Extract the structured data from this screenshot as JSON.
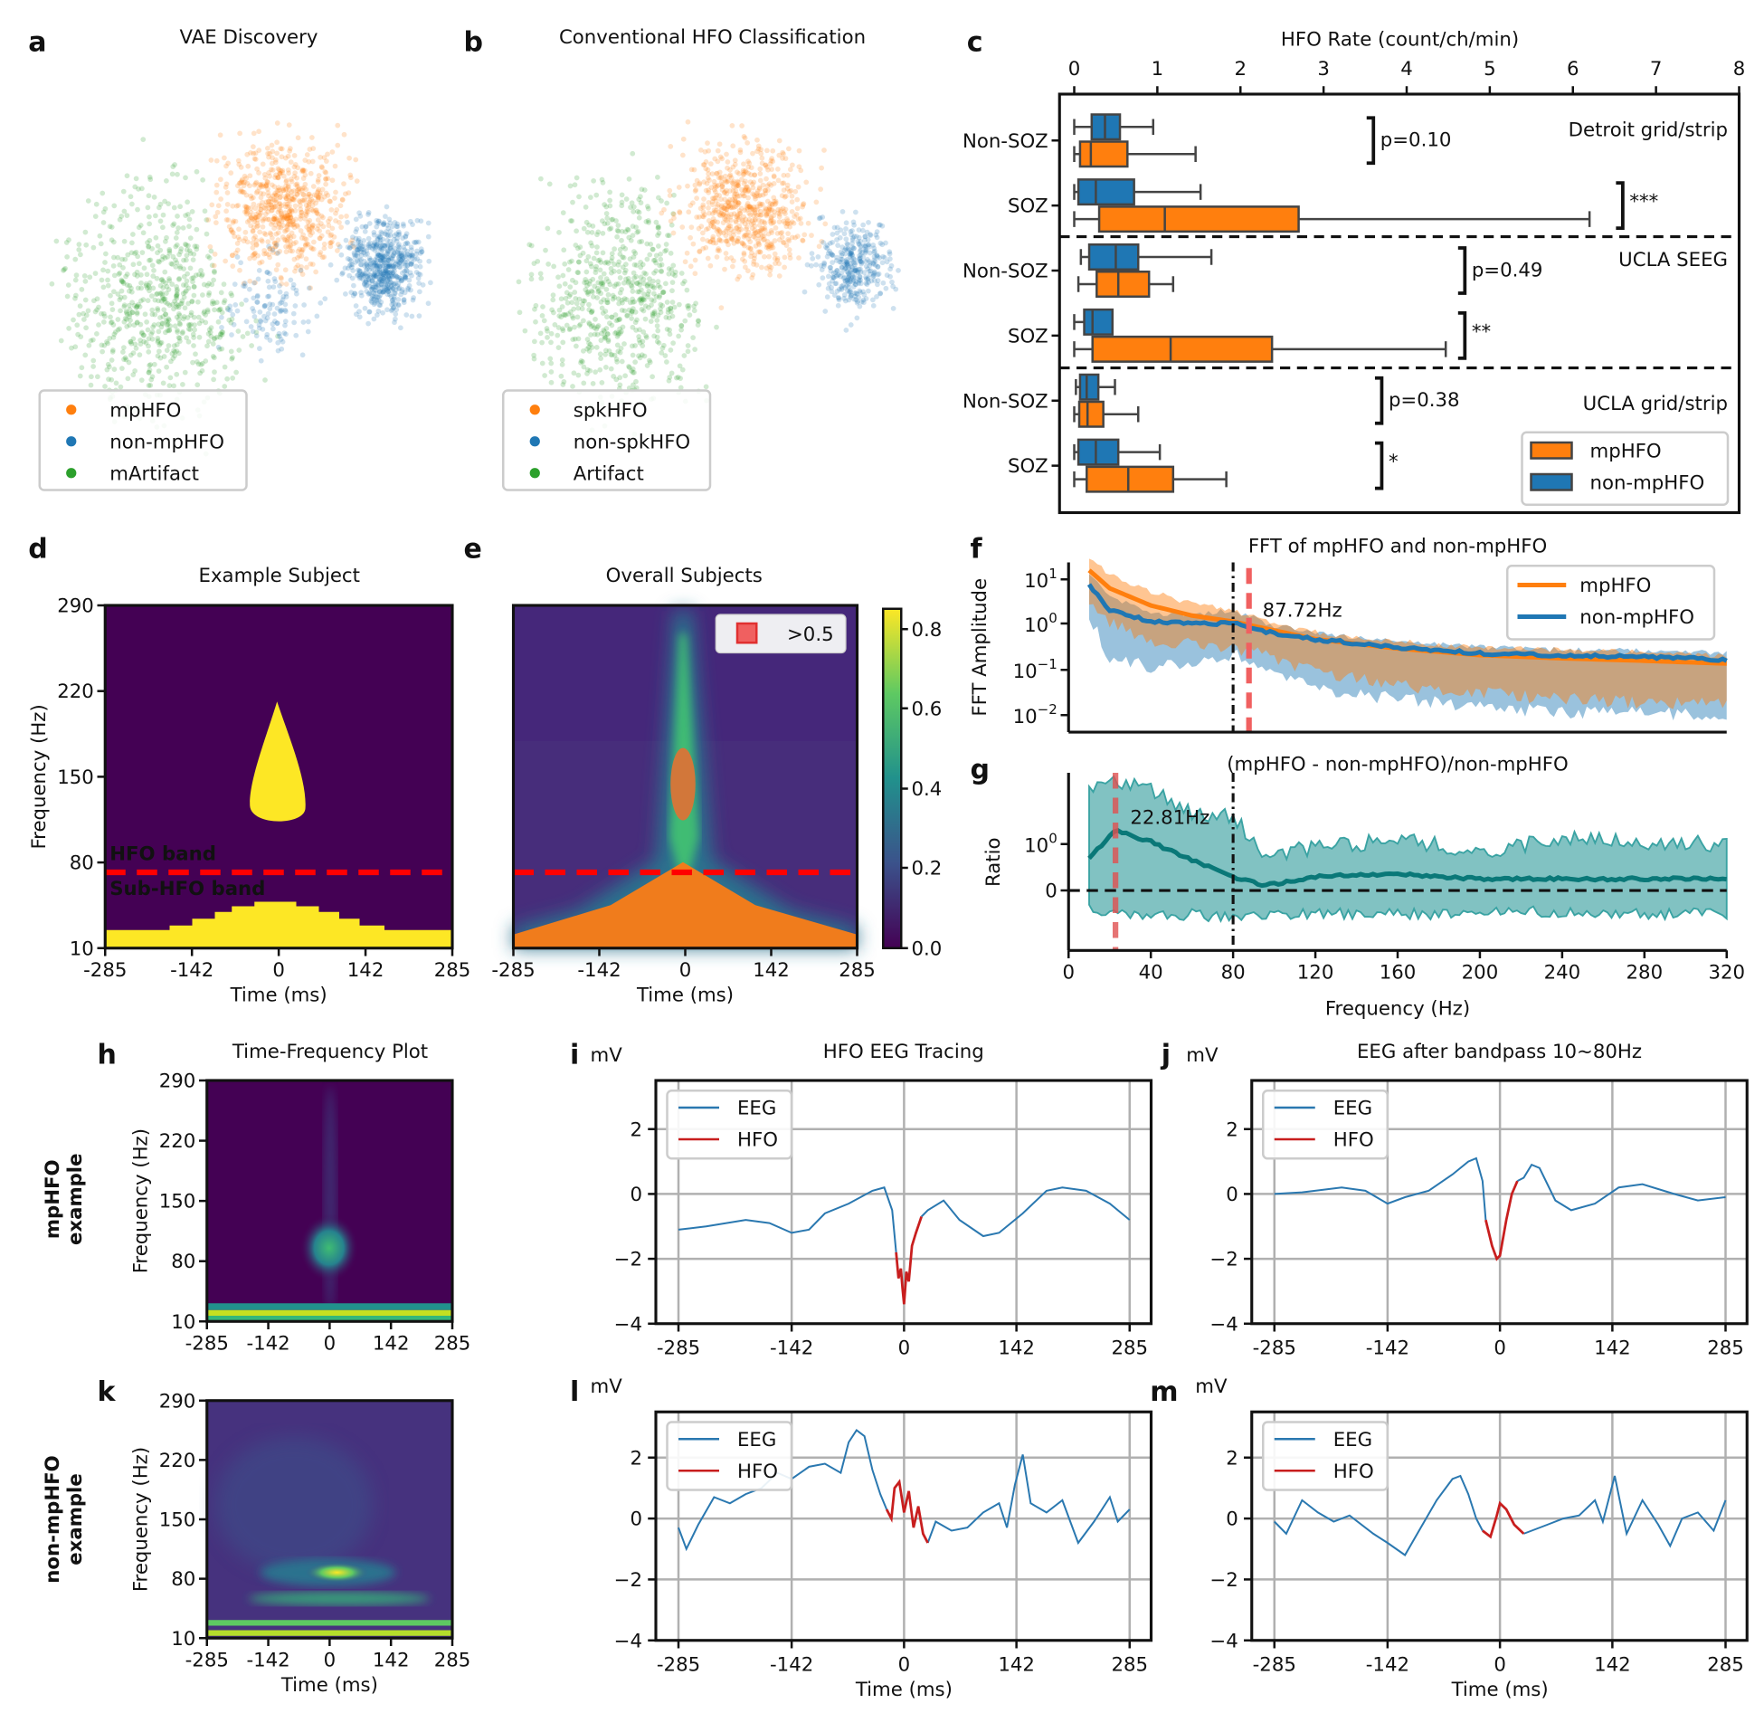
{
  "colors": {
    "orange": "#ff7f0e",
    "blue": "#1f77b4",
    "green": "#2ca02c",
    "teal": "#138a8a",
    "red": "#d62728",
    "band_red": "#ff0000"
  },
  "panels": {
    "a": {
      "label": "a",
      "title": "VAE Discovery",
      "legend": [
        "mpHFO",
        "non-mpHFO",
        "mArtifact"
      ]
    },
    "b": {
      "label": "b",
      "title": "Conventional HFO Classification",
      "legend": [
        "spkHFO",
        "non-spkHFO",
        "Artifact"
      ]
    },
    "c": {
      "label": "c"
    },
    "d": {
      "label": "d",
      "title": "Example Subject",
      "ylabel": "Frequency (Hz)",
      "xlabel": "Time (ms)",
      "hfo_band": "HFO band",
      "sub_hfo_band": "Sub-HFO band"
    },
    "e": {
      "label": "e",
      "title": "Overall Subjects",
      "xlabel": "Time (ms)",
      "legend": ">0.5",
      "colorbar_ticks": [
        "0.8",
        "0.6",
        "0.4",
        "0.2",
        "0.0"
      ]
    },
    "f": {
      "label": "f"
    },
    "g": {
      "label": "g"
    },
    "h": {
      "label": "h",
      "title": "Time-Frequency Plot",
      "ylabel": "Frequency (Hz)",
      "row_label_1": "mpHFO",
      "row_label_2": "example"
    },
    "i": {
      "label": "i",
      "unit": "mV",
      "title": "HFO EEG Tracing"
    },
    "j": {
      "label": "j",
      "unit": "mV",
      "title": "EEG after bandpass 10~80Hz"
    },
    "k": {
      "label": "k",
      "ylabel": "Frequency (Hz)",
      "xlabel": "Time (ms)",
      "row_label_1": "non-mpHFO",
      "row_label_2": "example"
    },
    "l": {
      "label": "l",
      "unit": "mV",
      "xlabel": "Time (ms)"
    },
    "m": {
      "label": "m",
      "unit": "mV",
      "xlabel": "Time (ms)"
    }
  },
  "tf_axes": {
    "yticks": [
      "290",
      "220",
      "150",
      "80",
      "10"
    ],
    "xticks": [
      "-285",
      "-142",
      "0",
      "142",
      "285"
    ]
  },
  "eeg_axes": {
    "yticks": [
      "2",
      "0",
      "−2",
      "−4"
    ],
    "xticks": [
      "-285",
      "-142",
      "0",
      "142",
      "285"
    ],
    "legend": [
      "EEG",
      "HFO"
    ]
  },
  "chart_data": [
    {
      "panel": "c",
      "type": "box",
      "title": "HFO Rate (count/ch/min)",
      "xlim": [
        0,
        8
      ],
      "xticks": [
        "0",
        "1",
        "2",
        "3",
        "4",
        "5",
        "6",
        "7",
        "8"
      ],
      "legend": [
        "mpHFO",
        "non-mpHFO"
      ],
      "legend_placement": "lower-right",
      "groups": [
        {
          "dataset": "Detroit grid/strip",
          "rows": [
            {
              "label": "Non-SOZ",
              "non_mpHFO": [
                0,
                0.21,
                0.37,
                0.55,
                0.95
              ],
              "mpHFO": [
                0,
                0.07,
                0.2,
                0.64,
                1.46
              ],
              "annotation": "p=0.10"
            },
            {
              "label": "SOZ",
              "non_mpHFO": [
                0,
                0.05,
                0.26,
                0.72,
                1.52
              ],
              "mpHFO": [
                0,
                0.3,
                1.09,
                2.7,
                6.2
              ],
              "annotation": "***"
            }
          ]
        },
        {
          "dataset": "UCLA SEEG",
          "rows": [
            {
              "label": "Non-SOZ",
              "non_mpHFO": [
                0.08,
                0.18,
                0.5,
                0.77,
                1.65
              ],
              "mpHFO": [
                0.05,
                0.27,
                0.53,
                0.9,
                1.19
              ],
              "annotation": "p=0.49"
            },
            {
              "label": "SOZ",
              "non_mpHFO": [
                0,
                0.12,
                0.22,
                0.46,
                0.46
              ],
              "mpHFO": [
                0,
                0.22,
                1.16,
                2.38,
                4.47
              ],
              "annotation": "**"
            }
          ]
        },
        {
          "dataset": "UCLA grid/strip",
          "rows": [
            {
              "label": "Non-SOZ",
              "non_mpHFO": [
                0.02,
                0.07,
                0.15,
                0.29,
                0.49
              ],
              "mpHFO": [
                0,
                0.06,
                0.16,
                0.35,
                0.77
              ],
              "annotation": "p=0.38"
            },
            {
              "label": "SOZ",
              "non_mpHFO": [
                0,
                0.05,
                0.26,
                0.53,
                1.03
              ],
              "mpHFO": [
                0,
                0.15,
                0.65,
                1.19,
                1.83
              ],
              "annotation": "*"
            }
          ]
        }
      ]
    },
    {
      "panel": "f",
      "type": "line",
      "title": "FFT of mpHFO and non-mpHFO",
      "ylabel": "FFT Amplitude",
      "yscale": "log",
      "yticks": [
        {
          "base": "10",
          "exp": "1"
        },
        {
          "base": "10",
          "exp": "0"
        },
        {
          "base": "10",
          "exp": "−1"
        },
        {
          "base": "10",
          "exp": "−2"
        }
      ],
      "xlim": [
        0,
        320
      ],
      "vline_black": 80,
      "vline_red": 87.72,
      "vline_red_label": "87.72Hz",
      "legend_placement": "upper-right",
      "x": [
        10,
        20,
        40,
        60,
        80,
        100,
        120,
        160,
        200,
        240,
        280,
        320
      ],
      "series": [
        {
          "name": "mpHFO",
          "mean": [
            15,
            6,
            2.5,
            1.5,
            1.1,
            0.7,
            0.45,
            0.28,
            0.2,
            0.17,
            0.15,
            0.13
          ],
          "lower": [
            5,
            1.5,
            0.6,
            0.5,
            0.4,
            0.25,
            0.12,
            0.06,
            0.04,
            0.03,
            0.025,
            0.025
          ],
          "upper": [
            30,
            12,
            5,
            2.8,
            1.9,
            1.0,
            0.65,
            0.4,
            0.3,
            0.26,
            0.23,
            0.2
          ]
        },
        {
          "name": "non-mpHFO",
          "mean": [
            7,
            2,
            1.1,
            1.0,
            1.0,
            0.6,
            0.45,
            0.3,
            0.22,
            0.2,
            0.18,
            0.16
          ],
          "lower": [
            2,
            0.25,
            0.15,
            0.2,
            0.3,
            0.1,
            0.05,
            0.03,
            0.02,
            0.015,
            0.015,
            0.012
          ],
          "upper": [
            12,
            4,
            1.8,
            1.5,
            2.0,
            0.9,
            0.6,
            0.4,
            0.3,
            0.26,
            0.25,
            0.23
          ]
        }
      ]
    },
    {
      "panel": "g",
      "type": "line",
      "title": "(mpHFO - non-mpHFO)/non-mpHFO",
      "ylabel": "Ratio",
      "xlabel": "Frequency (Hz)",
      "yticks": [
        {
          "base": "10",
          "exp": "0"
        },
        {
          "base": "0",
          "exp": ""
        }
      ],
      "xticks": [
        "0",
        "40",
        "80",
        "120",
        "160",
        "200",
        "240",
        "280",
        "320"
      ],
      "xlim": [
        0,
        320
      ],
      "hline": 0,
      "vline_black": 80,
      "vline_red": 22.81,
      "vline_red_label": "22.81Hz",
      "x": [
        10,
        22.81,
        40,
        60,
        80,
        95,
        120,
        160,
        200,
        240,
        280,
        320
      ],
      "mean": [
        0.7,
        1.3,
        1.05,
        0.65,
        0.3,
        0.1,
        0.3,
        0.35,
        0.25,
        0.25,
        0.25,
        0.25
      ],
      "lower": [
        -0.4,
        -0.5,
        -0.6,
        -0.5,
        -0.6,
        -0.5,
        -0.5,
        -0.5,
        -0.5,
        -0.45,
        -0.5,
        -0.5
      ],
      "upper": [
        2.1,
        2.3,
        2.2,
        1.7,
        1.6,
        0.8,
        0.9,
        1.1,
        0.85,
        1.1,
        1.05,
        1.0
      ]
    },
    {
      "panel": "i",
      "type": "line",
      "ylim": [
        -4,
        3.5
      ],
      "xlim": [
        -285,
        285
      ],
      "eeg": [
        [
          -285,
          -1.1
        ],
        [
          -250,
          -1.0
        ],
        [
          -200,
          -0.8
        ],
        [
          -170,
          -0.9
        ],
        [
          -142,
          -1.2
        ],
        [
          -120,
          -1.1
        ],
        [
          -100,
          -0.6
        ],
        [
          -70,
          -0.3
        ],
        [
          -40,
          0.1
        ],
        [
          -25,
          0.2
        ],
        [
          -15,
          -0.5
        ],
        [
          -10,
          -1.8
        ]
      ],
      "hfo": [
        [
          -10,
          -1.8
        ],
        [
          -7,
          -2.6
        ],
        [
          -4,
          -2.3
        ],
        [
          -2,
          -2.9
        ],
        [
          0,
          -3.4
        ],
        [
          3,
          -2.4
        ],
        [
          6,
          -2.7
        ],
        [
          10,
          -1.6
        ],
        [
          15,
          -1.2
        ],
        [
          22,
          -0.7
        ]
      ],
      "eeg_after": [
        [
          22,
          -0.7
        ],
        [
          30,
          -0.5
        ],
        [
          50,
          -0.2
        ],
        [
          70,
          -0.8
        ],
        [
          100,
          -1.3
        ],
        [
          120,
          -1.2
        ],
        [
          150,
          -0.6
        ],
        [
          180,
          0.1
        ],
        [
          200,
          0.2
        ],
        [
          230,
          0.1
        ],
        [
          260,
          -0.3
        ],
        [
          285,
          -0.8
        ]
      ]
    },
    {
      "panel": "j",
      "type": "line",
      "ylim": [
        -4,
        3.5
      ],
      "xlim": [
        -285,
        285
      ],
      "eeg": [
        [
          -285,
          0.0
        ],
        [
          -250,
          0.05
        ],
        [
          -200,
          0.2
        ],
        [
          -170,
          0.1
        ],
        [
          -142,
          -0.3
        ],
        [
          -120,
          -0.1
        ],
        [
          -90,
          0.1
        ],
        [
          -60,
          0.6
        ],
        [
          -40,
          1.0
        ],
        [
          -30,
          1.1
        ],
        [
          -22,
          0.4
        ],
        [
          -18,
          -0.8
        ]
      ],
      "hfo": [
        [
          -18,
          -0.8
        ],
        [
          -10,
          -1.6
        ],
        [
          -4,
          -2.0
        ],
        [
          0,
          -1.9
        ],
        [
          8,
          -0.8
        ],
        [
          15,
          0.0
        ],
        [
          22,
          0.4
        ]
      ],
      "eeg_after": [
        [
          22,
          0.4
        ],
        [
          30,
          0.5
        ],
        [
          40,
          0.9
        ],
        [
          50,
          0.8
        ],
        [
          70,
          -0.2
        ],
        [
          90,
          -0.5
        ],
        [
          120,
          -0.3
        ],
        [
          150,
          0.2
        ],
        [
          180,
          0.3
        ],
        [
          220,
          0.0
        ],
        [
          250,
          -0.2
        ],
        [
          285,
          -0.1
        ]
      ]
    },
    {
      "panel": "l",
      "type": "line",
      "ylim": [
        -4,
        3.5
      ],
      "xlim": [
        -285,
        285
      ],
      "eeg": [
        [
          -285,
          -0.3
        ],
        [
          -275,
          -1.0
        ],
        [
          -260,
          -0.2
        ],
        [
          -240,
          0.7
        ],
        [
          -220,
          0.5
        ],
        [
          -200,
          0.8
        ],
        [
          -180,
          1.0
        ],
        [
          -160,
          1.5
        ],
        [
          -142,
          1.3
        ],
        [
          -120,
          1.7
        ],
        [
          -100,
          1.8
        ],
        [
          -80,
          1.5
        ],
        [
          -70,
          2.5
        ],
        [
          -60,
          2.9
        ],
        [
          -50,
          2.7
        ],
        [
          -40,
          1.6
        ],
        [
          -30,
          0.8
        ],
        [
          -22,
          0.3
        ]
      ],
      "hfo": [
        [
          -22,
          0.3
        ],
        [
          -16,
          0.0
        ],
        [
          -12,
          1.0
        ],
        [
          -6,
          1.2
        ],
        [
          0,
          0.2
        ],
        [
          6,
          0.9
        ],
        [
          12,
          -0.3
        ],
        [
          18,
          0.4
        ],
        [
          24,
          -0.5
        ],
        [
          30,
          -0.8
        ]
      ],
      "eeg_after": [
        [
          30,
          -0.8
        ],
        [
          40,
          -0.1
        ],
        [
          60,
          -0.4
        ],
        [
          80,
          -0.3
        ],
        [
          100,
          0.2
        ],
        [
          120,
          0.5
        ],
        [
          130,
          -0.3
        ],
        [
          140,
          1.1
        ],
        [
          150,
          2.1
        ],
        [
          160,
          0.5
        ],
        [
          180,
          0.2
        ],
        [
          200,
          0.6
        ],
        [
          220,
          -0.8
        ],
        [
          240,
          -0.1
        ],
        [
          260,
          0.7
        ],
        [
          270,
          -0.1
        ],
        [
          285,
          0.3
        ]
      ]
    },
    {
      "panel": "m",
      "type": "line",
      "ylim": [
        -4,
        3.5
      ],
      "xlim": [
        -285,
        285
      ],
      "eeg": [
        [
          -285,
          -0.1
        ],
        [
          -270,
          -0.5
        ],
        [
          -250,
          0.6
        ],
        [
          -230,
          0.2
        ],
        [
          -210,
          -0.1
        ],
        [
          -190,
          0.1
        ],
        [
          -160,
          -0.5
        ],
        [
          -142,
          -0.8
        ],
        [
          -120,
          -1.2
        ],
        [
          -100,
          -0.3
        ],
        [
          -80,
          0.6
        ],
        [
          -60,
          1.3
        ],
        [
          -50,
          1.4
        ],
        [
          -40,
          0.8
        ],
        [
          -30,
          0.0
        ],
        [
          -22,
          -0.4
        ]
      ],
      "hfo": [
        [
          -22,
          -0.4
        ],
        [
          -12,
          -0.6
        ],
        [
          -4,
          0.1
        ],
        [
          0,
          0.5
        ],
        [
          8,
          0.3
        ],
        [
          18,
          -0.2
        ],
        [
          30,
          -0.5
        ]
      ],
      "eeg_after": [
        [
          30,
          -0.5
        ],
        [
          60,
          -0.2
        ],
        [
          80,
          0.0
        ],
        [
          100,
          0.1
        ],
        [
          120,
          0.6
        ],
        [
          130,
          -0.1
        ],
        [
          145,
          1.4
        ],
        [
          160,
          -0.5
        ],
        [
          180,
          0.6
        ],
        [
          200,
          -0.2
        ],
        [
          215,
          -0.9
        ],
        [
          230,
          0.0
        ],
        [
          250,
          0.2
        ],
        [
          270,
          -0.4
        ],
        [
          285,
          0.6
        ]
      ]
    }
  ]
}
